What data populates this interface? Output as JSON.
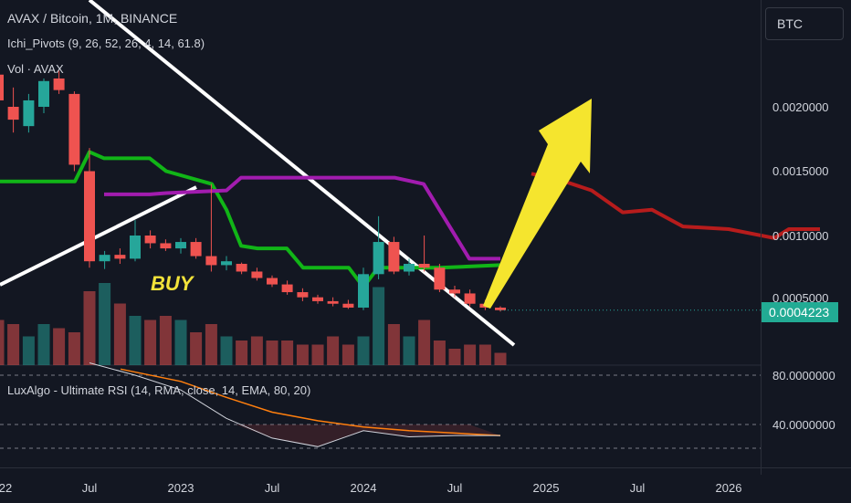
{
  "header": {
    "symbol_line": "AVAX / Bitcoin, 1M, BINANCE",
    "indicator1": "Ichi_Pivots (9, 26, 52, 26, 4, 14, 61.8)",
    "indicator2": "Vol · AVAX",
    "indicator3": "LuxAlgo - Ultimate RSI (14, RMA, close, 14, EMA, 80, 20)"
  },
  "price_scale": {
    "currency": "BTC",
    "ticks": [
      "0.0020000",
      "0.0015000",
      "0.0010000",
      "0.0005000"
    ],
    "current_price": "0.0004223"
  },
  "rsi_scale": {
    "ticks": [
      "80.0000000",
      "40.0000000"
    ]
  },
  "time_axis": {
    "labels": [
      "22",
      "Jul",
      "2023",
      "Jul",
      "2024",
      "Jul",
      "2025",
      "Jul",
      "2026"
    ]
  },
  "annotation": {
    "buy_label": "BUY"
  },
  "colors": {
    "background": "#131722",
    "up": "#26a69a",
    "down": "#ef5350",
    "pivot_green": "#11b517",
    "pivot_purple": "#a21caf",
    "projection_red": "#b71c1c",
    "arrow_yellow": "#f5e52e",
    "trendline": "#ffffff",
    "rsi_line": "#d1d4dc",
    "rsi_signal": "#ff7f0e"
  },
  "chart_data": {
    "type": "candlestick",
    "title": "AVAX / Bitcoin, 1M, BINANCE",
    "ylim": [
      0.0002,
      0.0025
    ],
    "candles": [
      {
        "t": 2022.0,
        "o": 0.00225,
        "h": 0.00235,
        "l": 0.00195,
        "c": 0.00205
      },
      {
        "t": 2022.083,
        "o": 0.002,
        "h": 0.00215,
        "l": 0.0018,
        "c": 0.0019
      },
      {
        "t": 2022.167,
        "o": 0.00185,
        "h": 0.0021,
        "l": 0.0018,
        "c": 0.00205
      },
      {
        "t": 2022.25,
        "o": 0.002,
        "h": 0.00222,
        "l": 0.00195,
        "c": 0.0022
      },
      {
        "t": 2022.333,
        "o": 0.00222,
        "h": 0.00228,
        "l": 0.0021,
        "c": 0.00213
      },
      {
        "t": 2022.417,
        "o": 0.0021,
        "h": 0.00212,
        "l": 0.0015,
        "c": 0.00155
      },
      {
        "t": 2022.5,
        "o": 0.0015,
        "h": 0.00168,
        "l": 0.00075,
        "c": 0.0008
      },
      {
        "t": 2022.583,
        "o": 0.0008,
        "h": 0.00088,
        "l": 0.00074,
        "c": 0.00085
      },
      {
        "t": 2022.667,
        "o": 0.00085,
        "h": 0.0009,
        "l": 0.00078,
        "c": 0.00082
      },
      {
        "t": 2022.75,
        "o": 0.00082,
        "h": 0.00112,
        "l": 0.0008,
        "c": 0.001
      },
      {
        "t": 2022.833,
        "o": 0.001,
        "h": 0.00104,
        "l": 0.0009,
        "c": 0.00094
      },
      {
        "t": 2022.917,
        "o": 0.00094,
        "h": 0.00097,
        "l": 0.00088,
        "c": 0.0009
      },
      {
        "t": 2023.0,
        "o": 0.0009,
        "h": 0.00098,
        "l": 0.00086,
        "c": 0.00095
      },
      {
        "t": 2023.083,
        "o": 0.00095,
        "h": 0.00098,
        "l": 0.00082,
        "c": 0.00084
      },
      {
        "t": 2023.167,
        "o": 0.00084,
        "h": 0.0014,
        "l": 0.00072,
        "c": 0.00077
      },
      {
        "t": 2023.25,
        "o": 0.00077,
        "h": 0.00084,
        "l": 0.00073,
        "c": 0.0008
      },
      {
        "t": 2023.333,
        "o": 0.00078,
        "h": 0.00079,
        "l": 0.0007,
        "c": 0.00072
      },
      {
        "t": 2023.417,
        "o": 0.00072,
        "h": 0.00075,
        "l": 0.00065,
        "c": 0.00067
      },
      {
        "t": 2023.5,
        "o": 0.00067,
        "h": 0.00069,
        "l": 0.0006,
        "c": 0.00062
      },
      {
        "t": 2023.583,
        "o": 0.00062,
        "h": 0.00065,
        "l": 0.00054,
        "c": 0.00056
      },
      {
        "t": 2023.667,
        "o": 0.00056,
        "h": 0.00059,
        "l": 0.00049,
        "c": 0.00052
      },
      {
        "t": 2023.75,
        "o": 0.00052,
        "h": 0.00054,
        "l": 0.00047,
        "c": 0.00049
      },
      {
        "t": 2023.833,
        "o": 0.00049,
        "h": 0.00052,
        "l": 0.00045,
        "c": 0.00047
      },
      {
        "t": 2023.917,
        "o": 0.00047,
        "h": 0.0005,
        "l": 0.00043,
        "c": 0.00044
      },
      {
        "t": 2024.0,
        "o": 0.00044,
        "h": 0.00075,
        "l": 0.00042,
        "c": 0.0007
      },
      {
        "t": 2024.083,
        "o": 0.0007,
        "h": 0.00115,
        "l": 0.00066,
        "c": 0.00095
      },
      {
        "t": 2024.167,
        "o": 0.00095,
        "h": 0.00099,
        "l": 0.0007,
        "c": 0.00072
      },
      {
        "t": 2024.25,
        "o": 0.00072,
        "h": 0.00082,
        "l": 0.00069,
        "c": 0.00078
      },
      {
        "t": 2024.333,
        "o": 0.00078,
        "h": 0.001,
        "l": 0.00072,
        "c": 0.00075
      },
      {
        "t": 2024.417,
        "o": 0.00075,
        "h": 0.00078,
        "l": 0.00056,
        "c": 0.00058
      },
      {
        "t": 2024.5,
        "o": 0.00058,
        "h": 0.00061,
        "l": 0.00052,
        "c": 0.00055
      },
      {
        "t": 2024.583,
        "o": 0.00055,
        "h": 0.00058,
        "l": 0.00045,
        "c": 0.00047
      },
      {
        "t": 2024.667,
        "o": 0.00047,
        "h": 0.0005,
        "l": 0.00042,
        "c": 0.00044
      },
      {
        "t": 2024.75,
        "o": 0.00044,
        "h": 0.00045,
        "l": 0.00041,
        "c": 0.00042
      }
    ],
    "volume": [
      0.55,
      0.5,
      0.35,
      0.5,
      0.45,
      0.4,
      0.9,
      1.0,
      0.75,
      0.6,
      0.55,
      0.6,
      0.55,
      0.4,
      0.5,
      0.35,
      0.3,
      0.35,
      0.3,
      0.3,
      0.25,
      0.25,
      0.35,
      0.25,
      0.35,
      0.95,
      0.5,
      0.35,
      0.55,
      0.3,
      0.2,
      0.25,
      0.25,
      0.15
    ],
    "series": [
      {
        "points": [
          [
            2021.9,
            0.00142
          ],
          [
            2022.42,
            0.00142
          ],
          [
            2022.5,
            0.00165
          ],
          [
            2022.58,
            0.0016
          ],
          [
            2022.83,
            0.0016
          ],
          [
            2022.92,
            0.0015
          ],
          [
            2023.17,
            0.0014
          ],
          [
            2023.25,
            0.0012
          ],
          [
            2023.33,
            0.00092
          ],
          [
            2023.42,
            0.0009
          ],
          [
            2023.58,
            0.0009
          ],
          [
            2023.67,
            0.00075
          ],
          [
            2023.92,
            0.00075
          ],
          [
            2024.0,
            0.0006
          ],
          [
            2024.08,
            0.00075
          ],
          [
            2024.42,
            0.00075
          ],
          [
            2024.75,
            0.00077
          ]
        ]
      },
      {
        "points": [
          [
            2022.58,
            0.00132
          ],
          [
            2022.83,
            0.00132
          ],
          [
            2022.92,
            0.00133
          ],
          [
            2023.25,
            0.00135
          ],
          [
            2023.33,
            0.00145
          ],
          [
            2024.17,
            0.00145
          ],
          [
            2024.33,
            0.0014
          ],
          [
            2024.58,
            0.00082
          ],
          [
            2024.75,
            0.00082
          ]
        ]
      },
      {
        "points": [
          [
            2024.92,
            0.00148
          ],
          [
            2025.08,
            0.00143
          ],
          [
            2025.25,
            0.00135
          ],
          [
            2025.42,
            0.00118
          ],
          [
            2025.58,
            0.0012
          ],
          [
            2025.75,
            0.00107
          ],
          [
            2026.0,
            0.00105
          ],
          [
            2026.25,
            0.00098
          ],
          [
            2026.33,
            0.00105
          ],
          [
            2026.5,
            0.00105
          ]
        ]
      }
    ],
    "rsi": {
      "ylim": [
        10,
        100
      ],
      "levels": [
        80,
        40
      ],
      "value": [
        [
          2022.5,
          90
        ],
        [
          2022.75,
          80
        ],
        [
          2023.0,
          68
        ],
        [
          2023.25,
          45
        ],
        [
          2023.5,
          29
        ],
        [
          2023.75,
          22
        ],
        [
          2024.0,
          35
        ],
        [
          2024.25,
          30
        ],
        [
          2024.5,
          31
        ],
        [
          2024.75,
          31
        ]
      ],
      "signal": [
        [
          2022.67,
          85
        ],
        [
          2023.0,
          75
        ],
        [
          2023.25,
          62
        ],
        [
          2023.5,
          50
        ],
        [
          2023.75,
          43
        ],
        [
          2024.0,
          38
        ],
        [
          2024.25,
          35
        ],
        [
          2024.5,
          33
        ],
        [
          2024.75,
          31
        ]
      ]
    }
  }
}
